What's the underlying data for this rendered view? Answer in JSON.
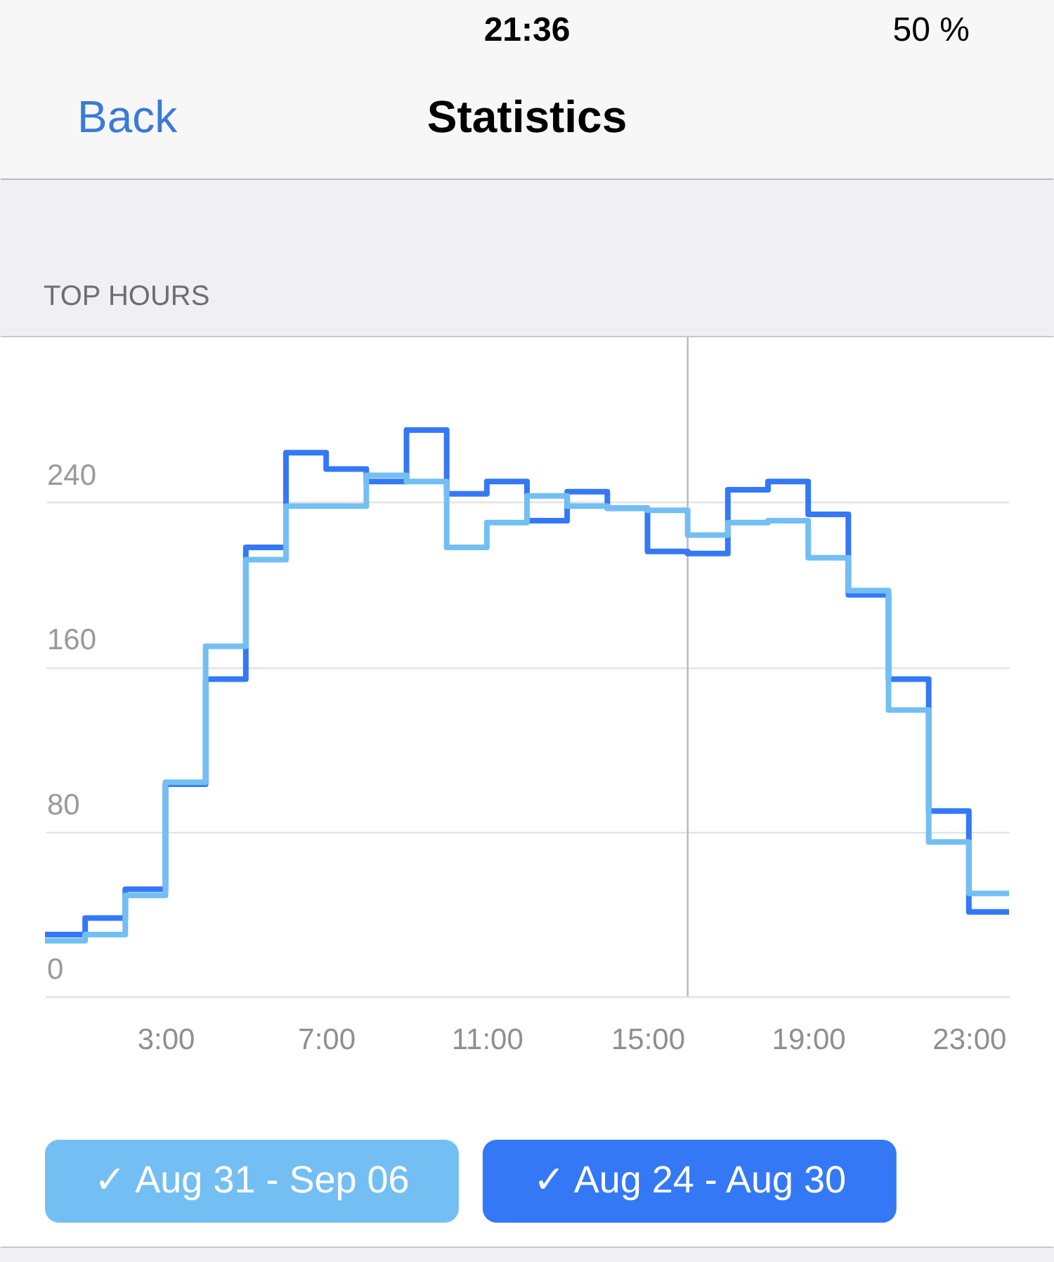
{
  "chart_data": {
    "type": "step",
    "title": "Statistics",
    "subtitle": "TOP HOURS",
    "annotations": [
      "21:36",
      "50 %",
      "Back"
    ],
    "x": [
      0,
      1,
      2,
      3,
      4,
      5,
      6,
      7,
      8,
      9,
      10,
      11,
      12,
      13,
      14,
      15,
      16,
      17,
      18,
      19,
      20,
      21,
      22,
      23,
      24
    ],
    "xlim": [
      0,
      24
    ],
    "xticks": [
      {
        "value": 3,
        "label": "3:00"
      },
      {
        "value": 7,
        "label": "7:00"
      },
      {
        "value": 11,
        "label": "11:00"
      },
      {
        "value": 15,
        "label": "15:00"
      },
      {
        "value": 19,
        "label": "19:00"
      },
      {
        "value": 23,
        "label": "23:00"
      }
    ],
    "ylim": [
      0,
      320
    ],
    "yticks": [
      0,
      80,
      160,
      240
    ],
    "grid": "y",
    "legend": "bottom",
    "series": [
      {
        "name": "✓ Aug 31 - Sep 06",
        "color": "#73bff3",
        "values": [
          27,
          30,
          49,
          104,
          170,
          212,
          238,
          238,
          253,
          250,
          218,
          230,
          243,
          238,
          237,
          236,
          224,
          230,
          231,
          213,
          197,
          139,
          75,
          50,
          50
        ]
      },
      {
        "name": "✓ Aug 24 - Aug 30",
        "color": "#3478f6",
        "values": [
          30,
          38,
          52,
          103,
          154,
          218,
          264,
          256,
          250,
          275,
          244,
          250,
          231,
          245,
          237,
          216,
          215,
          246,
          250,
          234,
          195,
          154,
          90,
          41,
          41
        ]
      }
    ],
    "ref_lines": [
      {
        "axis": "x",
        "value": 16,
        "color": "#b8b8bc"
      }
    ]
  }
}
